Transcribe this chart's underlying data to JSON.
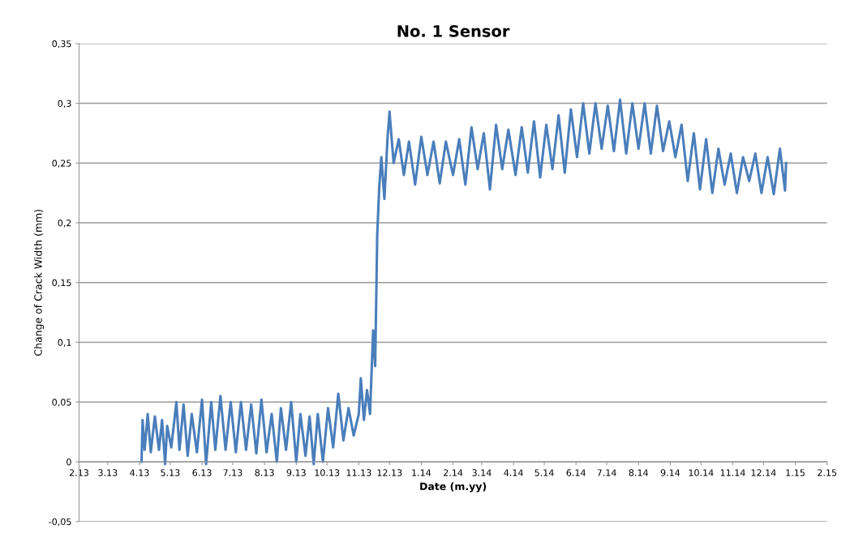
{
  "chart_data": {
    "type": "line",
    "title": "No. 1 Sensor",
    "xlabel": "Date (m.yy)",
    "ylabel": "Change of Crack Width (mm)",
    "xlim": [
      "2013-02-01",
      "2015-02-01"
    ],
    "ylim": [
      -0.05,
      0.35
    ],
    "xticks": [
      {
        "value": "2013-02-01",
        "label": "2.13"
      },
      {
        "value": "2013-03-01",
        "label": "3.13"
      },
      {
        "value": "2013-04-01",
        "label": "4.13"
      },
      {
        "value": "2013-05-01",
        "label": "5.13"
      },
      {
        "value": "2013-06-01",
        "label": "6.13"
      },
      {
        "value": "2013-07-01",
        "label": "7.13"
      },
      {
        "value": "2013-08-01",
        "label": "8.13"
      },
      {
        "value": "2013-09-01",
        "label": "9.13"
      },
      {
        "value": "2013-10-01",
        "label": "10.13"
      },
      {
        "value": "2013-11-01",
        "label": "11.13"
      },
      {
        "value": "2013-12-01",
        "label": "12.13"
      },
      {
        "value": "2014-01-01",
        "label": "1.14"
      },
      {
        "value": "2014-02-01",
        "label": "2.14"
      },
      {
        "value": "2014-03-01",
        "label": "3.14"
      },
      {
        "value": "2014-04-01",
        "label": "4.14"
      },
      {
        "value": "2014-05-01",
        "label": "5.14"
      },
      {
        "value": "2014-06-01",
        "label": "6.14"
      },
      {
        "value": "2014-07-01",
        "label": "7.14"
      },
      {
        "value": "2014-08-01",
        "label": "8.14"
      },
      {
        "value": "2014-09-01",
        "label": "9.14"
      },
      {
        "value": "2014-10-01",
        "label": "10.14"
      },
      {
        "value": "2014-11-01",
        "label": "11.14"
      },
      {
        "value": "2014-12-01",
        "label": "12.14"
      },
      {
        "value": "2015-01-01",
        "label": "1.15"
      },
      {
        "value": "2015-02-01",
        "label": "2.15"
      }
    ],
    "yticks": [
      {
        "value": -0.05,
        "label": "-0,05"
      },
      {
        "value": 0,
        "label": "0"
      },
      {
        "value": 0.05,
        "label": "0,05"
      },
      {
        "value": 0.1,
        "label": "0,1"
      },
      {
        "value": 0.15,
        "label": "0,15"
      },
      {
        "value": 0.2,
        "label": "0,2"
      },
      {
        "value": 0.25,
        "label": "0,25"
      },
      {
        "value": 0.3,
        "label": "0,3"
      },
      {
        "value": 0.35,
        "label": "0,35"
      }
    ],
    "grid": "y",
    "legend": false,
    "marker": "none",
    "line_style": "solid",
    "series": [
      {
        "color": "#4a7ebb",
        "x": [
          "2013-04-03",
          "2013-04-04",
          "2013-04-06",
          "2013-04-09",
          "2013-04-12",
          "2013-04-16",
          "2013-04-20",
          "2013-04-23",
          "2013-04-26",
          "2013-04-28",
          "2013-05-02",
          "2013-05-07",
          "2013-05-10",
          "2013-05-14",
          "2013-05-18",
          "2013-05-22",
          "2013-05-27",
          "2013-06-01",
          "2013-06-05",
          "2013-06-10",
          "2013-06-14",
          "2013-06-19",
          "2013-06-24",
          "2013-06-29",
          "2013-07-04",
          "2013-07-09",
          "2013-07-14",
          "2013-07-19",
          "2013-07-24",
          "2013-07-29",
          "2013-08-03",
          "2013-08-08",
          "2013-08-13",
          "2013-08-17",
          "2013-08-22",
          "2013-08-27",
          "2013-09-01",
          "2013-09-05",
          "2013-09-10",
          "2013-09-14",
          "2013-09-18",
          "2013-09-22",
          "2013-09-27",
          "2013-10-02",
          "2013-10-07",
          "2013-10-12",
          "2013-10-17",
          "2013-10-22",
          "2013-10-27",
          "2013-11-01",
          "2013-11-03",
          "2013-11-06",
          "2013-11-09",
          "2013-11-12",
          "2013-11-15",
          "2013-11-17",
          "2013-11-19",
          "2013-11-21",
          "2013-11-23",
          "2013-11-26",
          "2013-11-29",
          "2013-12-01",
          "2013-12-05",
          "2013-12-10",
          "2013-12-15",
          "2013-12-20",
          "2013-12-26",
          "2014-01-01",
          "2014-01-07",
          "2014-01-13",
          "2014-01-19",
          "2014-01-25",
          "2014-02-01",
          "2014-02-07",
          "2014-02-13",
          "2014-02-19",
          "2014-02-25",
          "2014-03-03",
          "2014-03-09",
          "2014-03-15",
          "2014-03-21",
          "2014-03-27",
          "2014-04-03",
          "2014-04-09",
          "2014-04-15",
          "2014-04-21",
          "2014-04-27",
          "2014-05-03",
          "2014-05-09",
          "2014-05-15",
          "2014-05-21",
          "2014-05-27",
          "2014-06-02",
          "2014-06-08",
          "2014-06-14",
          "2014-06-20",
          "2014-06-26",
          "2014-07-02",
          "2014-07-08",
          "2014-07-14",
          "2014-07-20",
          "2014-07-26",
          "2014-08-01",
          "2014-08-07",
          "2014-08-13",
          "2014-08-19",
          "2014-08-25",
          "2014-08-31",
          "2014-09-06",
          "2014-09-12",
          "2014-09-18",
          "2014-09-24",
          "2014-09-30",
          "2014-10-06",
          "2014-10-12",
          "2014-10-18",
          "2014-10-24",
          "2014-10-30",
          "2014-11-05",
          "2014-11-11",
          "2014-11-17",
          "2014-11-23",
          "2014-11-29",
          "2014-12-05",
          "2014-12-11",
          "2014-12-17",
          "2014-12-22",
          "2014-12-23"
        ],
        "values": [
          0.0,
          0.035,
          0.01,
          0.04,
          0.008,
          0.038,
          0.01,
          0.035,
          -0.002,
          0.03,
          0.012,
          0.05,
          0.01,
          0.048,
          0.005,
          0.04,
          0.008,
          0.052,
          -0.002,
          0.05,
          0.01,
          0.055,
          0.01,
          0.05,
          0.008,
          0.05,
          0.01,
          0.048,
          0.007,
          0.052,
          0.008,
          0.04,
          0.0,
          0.045,
          0.01,
          0.05,
          0.0,
          0.04,
          0.005,
          0.038,
          -0.002,
          0.04,
          0.0,
          0.045,
          0.012,
          0.057,
          0.018,
          0.045,
          0.022,
          0.04,
          0.07,
          0.035,
          0.06,
          0.04,
          0.11,
          0.08,
          0.19,
          0.23,
          0.255,
          0.22,
          0.27,
          0.293,
          0.25,
          0.27,
          0.24,
          0.268,
          0.232,
          0.272,
          0.24,
          0.268,
          0.233,
          0.268,
          0.24,
          0.27,
          0.232,
          0.28,
          0.245,
          0.275,
          0.228,
          0.282,
          0.245,
          0.278,
          0.24,
          0.28,
          0.242,
          0.285,
          0.238,
          0.282,
          0.245,
          0.29,
          0.242,
          0.295,
          0.255,
          0.3,
          0.258,
          0.3,
          0.262,
          0.298,
          0.26,
          0.303,
          0.258,
          0.3,
          0.262,
          0.3,
          0.258,
          0.298,
          0.26,
          0.285,
          0.255,
          0.282,
          0.235,
          0.275,
          0.228,
          0.27,
          0.225,
          0.262,
          0.232,
          0.258,
          0.225,
          0.255,
          0.235,
          0.258,
          0.225,
          0.255,
          0.224,
          0.262,
          0.227,
          0.25
        ]
      }
    ]
  }
}
